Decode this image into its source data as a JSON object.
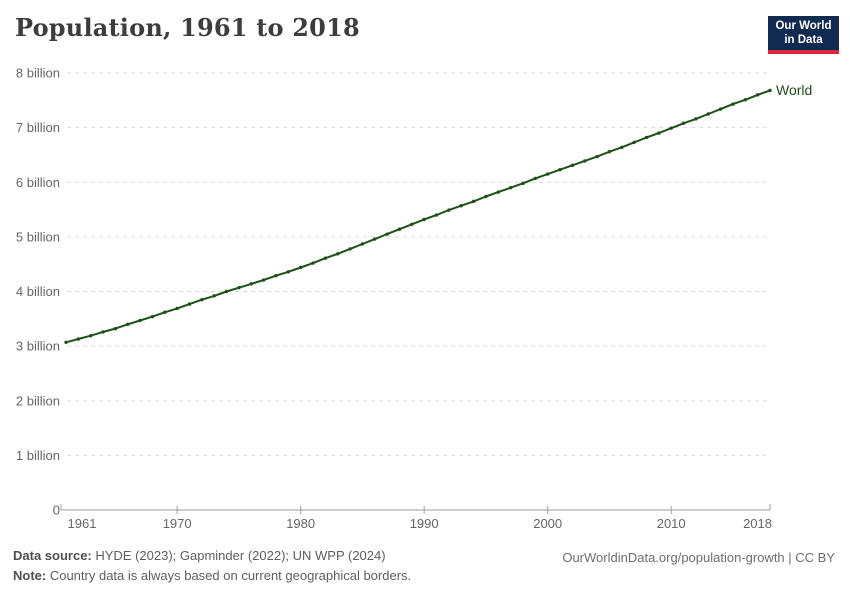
{
  "header": {
    "title": "Population, 1961 to 2018",
    "logo": {
      "line1": "Our World",
      "line2": "in Data"
    }
  },
  "footer": {
    "source_label": "Data source:",
    "source_text": " HYDE (2023); Gapminder (2022); UN WPP (2024)",
    "note_label": "Note:",
    "note_text": " Country data is always based on current geographical borders.",
    "link_text": "OurWorldinData.org/population-growth | CC BY"
  },
  "colors": {
    "line": "#1d5016",
    "logo_bg": "#102a52",
    "logo_accent": "#d7293d",
    "grid": "#dadada",
    "axis": "#9e9e9e",
    "tick_label": "#666666",
    "title_text": "#3d3d3d"
  },
  "chart_data": {
    "type": "line",
    "title": "Population, 1961 to 2018",
    "xlabel": "",
    "ylabel": "",
    "y_unit": "billion people",
    "xlim": [
      1961,
      2018
    ],
    "ylim": [
      0,
      8
    ],
    "grid": "horizontal-dashed",
    "legend_position": "end-of-line",
    "x_ticks": [
      1961,
      1970,
      1980,
      1990,
      2000,
      2010,
      2018
    ],
    "y_ticks": [
      0,
      1,
      2,
      3,
      4,
      5,
      6,
      7,
      8
    ],
    "y_tick_labels": [
      "0",
      "1 billion",
      "2 billion",
      "3 billion",
      "4 billion",
      "5 billion",
      "6 billion",
      "7 billion",
      "8 billion"
    ],
    "x": [
      1961,
      1962,
      1963,
      1964,
      1965,
      1966,
      1967,
      1968,
      1969,
      1970,
      1971,
      1972,
      1973,
      1974,
      1975,
      1976,
      1977,
      1978,
      1979,
      1980,
      1981,
      1982,
      1983,
      1984,
      1985,
      1986,
      1987,
      1988,
      1989,
      1990,
      1991,
      1992,
      1993,
      1994,
      1995,
      1996,
      1997,
      1998,
      1999,
      2000,
      2001,
      2002,
      2003,
      2004,
      2005,
      2006,
      2007,
      2008,
      2009,
      2010,
      2011,
      2012,
      2013,
      2014,
      2015,
      2016,
      2017,
      2018
    ],
    "series": [
      {
        "name": "World",
        "color": "#1d5016",
        "values": [
          3.07,
          3.13,
          3.19,
          3.26,
          3.32,
          3.4,
          3.47,
          3.54,
          3.62,
          3.69,
          3.77,
          3.85,
          3.92,
          4.0,
          4.07,
          4.14,
          4.21,
          4.29,
          4.36,
          4.44,
          4.52,
          4.61,
          4.69,
          4.78,
          4.87,
          4.96,
          5.05,
          5.14,
          5.23,
          5.32,
          5.4,
          5.49,
          5.57,
          5.65,
          5.74,
          5.82,
          5.9,
          5.98,
          6.07,
          6.15,
          6.23,
          6.31,
          6.39,
          6.47,
          6.56,
          6.64,
          6.73,
          6.82,
          6.9,
          6.99,
          7.08,
          7.16,
          7.25,
          7.34,
          7.43,
          7.51,
          7.6,
          7.68
        ]
      }
    ]
  }
}
